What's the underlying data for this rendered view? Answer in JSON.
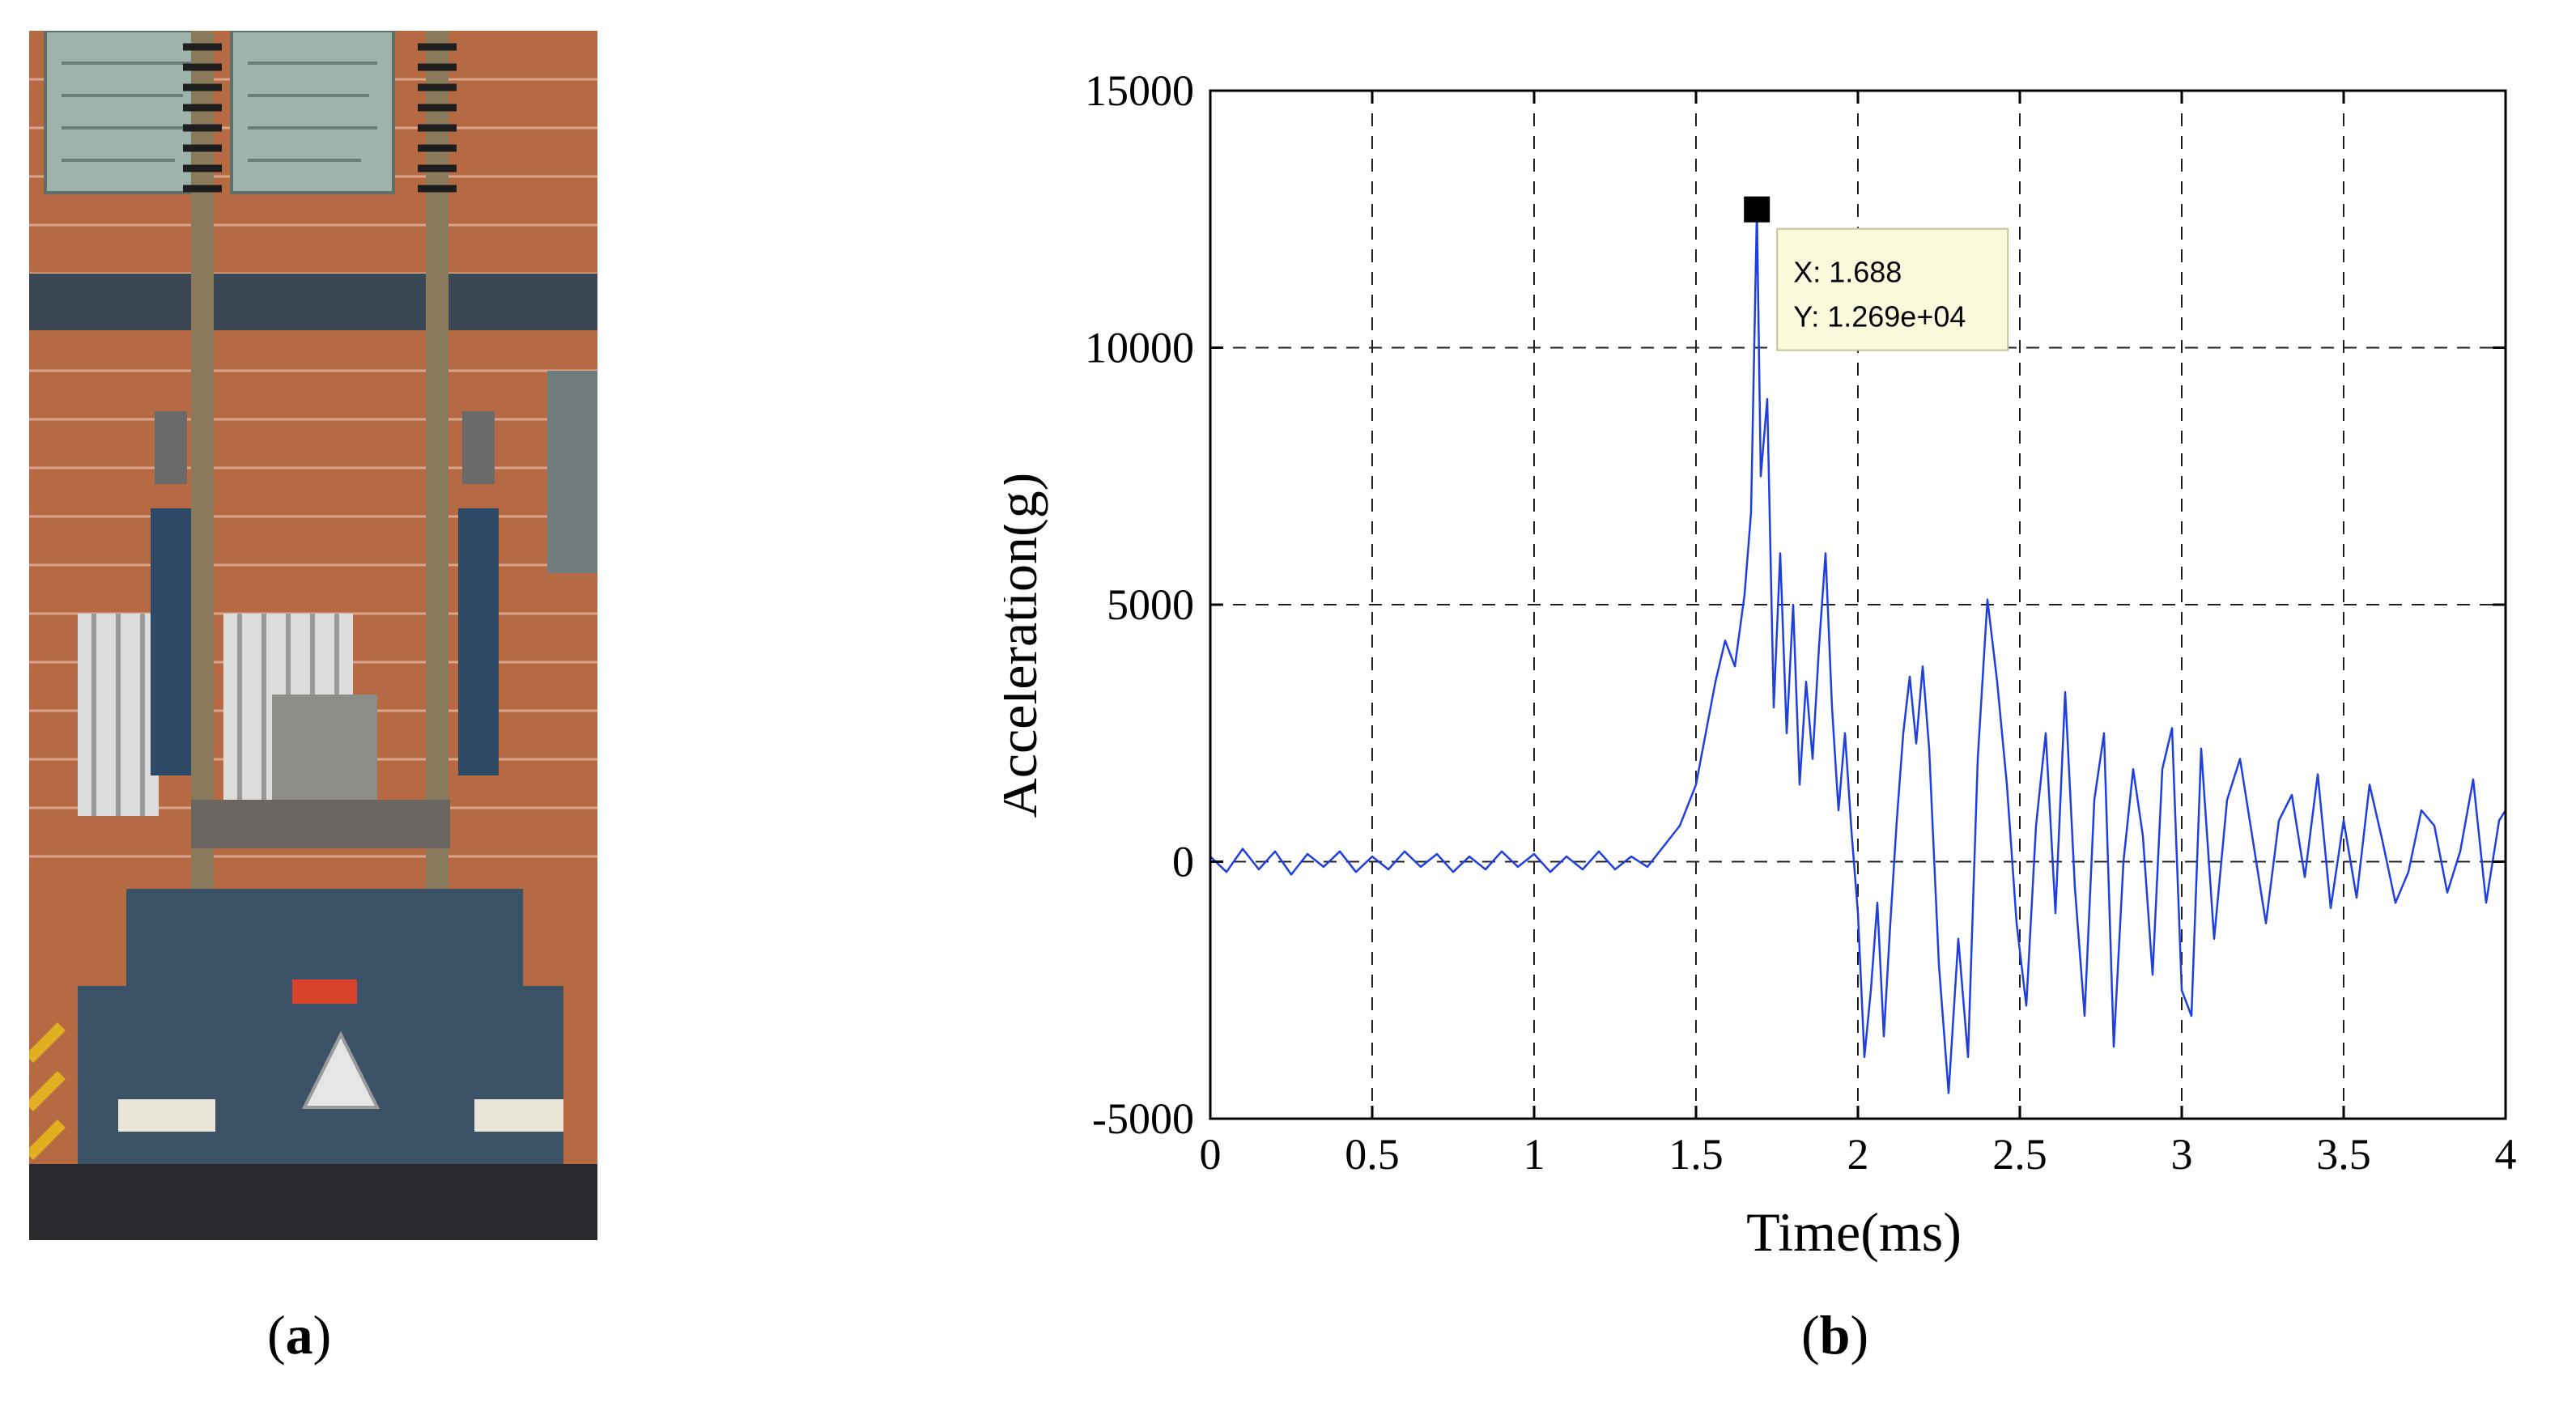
{
  "figure": {
    "caption_a": {
      "open": "(",
      "letter": "a",
      "close": ")"
    },
    "caption_b": {
      "open": "(",
      "letter": "b",
      "close": ")"
    }
  },
  "photo": {
    "subject": "drop-hammer-shock-test-machine",
    "colors": {
      "brick": "#b56a44",
      "machine_body": "#3c5266",
      "columns": "#8a7a5c",
      "floor": "#2a2a2e",
      "panel_board": "#9fb3ad"
    }
  },
  "chart_data": {
    "type": "line",
    "title": "",
    "xlabel": "Time(ms)",
    "ylabel": "Acceleration(g)",
    "xlim": [
      0,
      4
    ],
    "ylim": [
      -5000,
      15000
    ],
    "xticks": [
      0,
      0.5,
      1,
      1.5,
      2,
      2.5,
      3,
      3.5,
      4
    ],
    "xtick_labels": [
      "0",
      "0.5",
      "1",
      "1.5",
      "2",
      "2.5",
      "3",
      "3.5",
      "4"
    ],
    "yticks": [
      -5000,
      0,
      5000,
      10000,
      15000
    ],
    "ytick_labels": [
      "-5000",
      "0",
      "5000",
      "10000",
      "15000"
    ],
    "grid": true,
    "grid_style": "dashed",
    "line_color": "#1f3fe0",
    "series": [
      {
        "name": "",
        "x": [
          0.0,
          0.05,
          0.1,
          0.15,
          0.2,
          0.25,
          0.3,
          0.35,
          0.4,
          0.45,
          0.5,
          0.55,
          0.6,
          0.65,
          0.7,
          0.75,
          0.8,
          0.85,
          0.9,
          0.95,
          1.0,
          1.05,
          1.1,
          1.15,
          1.2,
          1.25,
          1.3,
          1.35,
          1.4,
          1.45,
          1.5,
          1.53,
          1.56,
          1.59,
          1.62,
          1.65,
          1.67,
          1.688,
          1.7,
          1.72,
          1.74,
          1.76,
          1.78,
          1.8,
          1.82,
          1.84,
          1.86,
          1.88,
          1.9,
          1.92,
          1.94,
          1.96,
          1.98,
          2.0,
          2.02,
          2.04,
          2.06,
          2.08,
          2.1,
          2.12,
          2.14,
          2.16,
          2.18,
          2.2,
          2.22,
          2.25,
          2.28,
          2.31,
          2.34,
          2.37,
          2.4,
          2.43,
          2.46,
          2.49,
          2.52,
          2.55,
          2.58,
          2.61,
          2.64,
          2.67,
          2.7,
          2.73,
          2.76,
          2.79,
          2.82,
          2.85,
          2.88,
          2.91,
          2.94,
          2.97,
          3.0,
          3.03,
          3.06,
          3.1,
          3.14,
          3.18,
          3.22,
          3.26,
          3.3,
          3.34,
          3.38,
          3.42,
          3.46,
          3.5,
          3.54,
          3.58,
          3.62,
          3.66,
          3.7,
          3.74,
          3.78,
          3.82,
          3.86,
          3.9,
          3.94,
          3.98,
          4.0
        ],
        "y": [
          100,
          -200,
          250,
          -150,
          200,
          -250,
          150,
          -100,
          200,
          -200,
          100,
          -150,
          200,
          -100,
          150,
          -200,
          100,
          -150,
          200,
          -100,
          150,
          -200,
          100,
          -150,
          200,
          -150,
          100,
          -100,
          300,
          700,
          1500,
          2500,
          3500,
          4300,
          3800,
          5200,
          6800,
          12690,
          7500,
          9000,
          3000,
          6000,
          2500,
          5000,
          1500,
          3500,
          2000,
          4200,
          6000,
          3000,
          1000,
          2500,
          600,
          -1000,
          -3800,
          -2500,
          -800,
          -3400,
          -1200,
          800,
          2500,
          3600,
          2300,
          3800,
          2200,
          -2000,
          -4500,
          -1500,
          -3800,
          2000,
          5100,
          3500,
          1500,
          -1200,
          -2800,
          700,
          2500,
          -1000,
          3300,
          -500,
          -3000,
          1200,
          2500,
          -3600,
          0,
          1800,
          500,
          -2200,
          1800,
          2600,
          -2500,
          -3000,
          2200,
          -1500,
          1200,
          2000,
          400,
          -1200,
          800,
          1300,
          -300,
          1700,
          -900,
          800,
          -700,
          1500,
          400,
          -800,
          -200,
          1000,
          700,
          -600,
          200,
          1600,
          -800,
          800,
          1000
        ]
      }
    ],
    "datatip": {
      "x": 1.688,
      "y": 12690,
      "label_x": "X: 1.688",
      "label_y": "Y: 1.269e+04"
    }
  }
}
